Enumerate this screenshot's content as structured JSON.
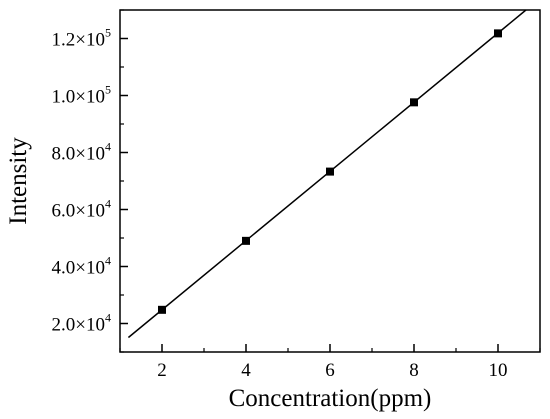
{
  "chart_data": {
    "type": "scatter",
    "xlabel": "Concentration(ppm)",
    "ylabel": "Intensity",
    "xlim": [
      1,
      11
    ],
    "ylim": [
      10000,
      130000
    ],
    "x_ticks": [
      {
        "value": 2,
        "label": "2"
      },
      {
        "value": 4,
        "label": "4"
      },
      {
        "value": 6,
        "label": "6"
      },
      {
        "value": 8,
        "label": "8"
      },
      {
        "value": 10,
        "label": "10"
      }
    ],
    "y_ticks": [
      {
        "value": 20000,
        "mantissa": "2.0",
        "exponent": "4"
      },
      {
        "value": 40000,
        "mantissa": "4.0",
        "exponent": "4"
      },
      {
        "value": 60000,
        "mantissa": "6.0",
        "exponent": "4"
      },
      {
        "value": 80000,
        "mantissa": "8.0",
        "exponent": "4"
      },
      {
        "value": 100000,
        "mantissa": "1.0",
        "exponent": "5"
      },
      {
        "value": 120000,
        "mantissa": "1.2",
        "exponent": "5"
      }
    ],
    "points": [
      {
        "x": 2,
        "y": 24800
      },
      {
        "x": 4,
        "y": 49000
      },
      {
        "x": 6,
        "y": 73300
      },
      {
        "x": 8,
        "y": 97600
      },
      {
        "x": 10,
        "y": 121800
      }
    ],
    "fit_line": {
      "slope": 12140,
      "intercept": 520,
      "x_start": 1.2,
      "x_end": 11
    },
    "grid": false,
    "legend": "none",
    "colors": {
      "axis": "#000000",
      "marker": "#000000",
      "line": "#000000"
    }
  }
}
